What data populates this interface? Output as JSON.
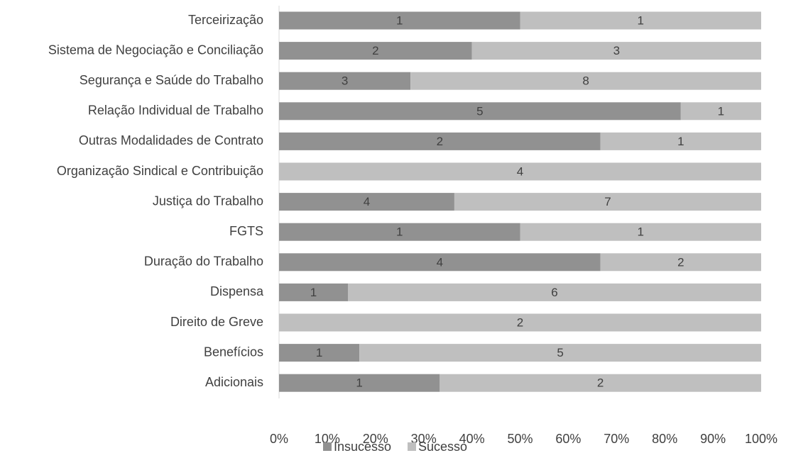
{
  "chart_data": {
    "type": "bar",
    "orientation": "horizontal",
    "stacking": "percent",
    "categories": [
      "Terceirização",
      "Sistema de Negociação e Conciliação",
      "Segurança e Saúde do Trabalho",
      "Relação Individual de Trabalho",
      "Outras Modalidades de Contrato",
      "Organização Sindical e Contribuição",
      "Justiça do Trabalho",
      "FGTS",
      "Duração do Trabalho",
      "Dispensa",
      "Direito de Greve",
      "Benefícios",
      "Adicionais"
    ],
    "series": [
      {
        "name": "Insucesso",
        "color": "#919191",
        "values": [
          1,
          2,
          3,
          5,
          2,
          0,
          4,
          1,
          4,
          1,
          0,
          1,
          1
        ]
      },
      {
        "name": "Sucesso",
        "color": "#bfbfbf",
        "values": [
          1,
          3,
          8,
          1,
          1,
          4,
          7,
          1,
          2,
          6,
          2,
          5,
          2
        ]
      }
    ],
    "xlim": [
      0,
      100
    ],
    "xticks": [
      {
        "value": 0,
        "label": "0%"
      },
      {
        "value": 10,
        "label": "10%"
      },
      {
        "value": 20,
        "label": "20%"
      },
      {
        "value": 30,
        "label": "30%"
      },
      {
        "value": 40,
        "label": "40%"
      },
      {
        "value": 50,
        "label": "50%"
      },
      {
        "value": 60,
        "label": "60%"
      },
      {
        "value": 70,
        "label": "70%"
      },
      {
        "value": 80,
        "label": "80%"
      },
      {
        "value": 90,
        "label": "90%"
      },
      {
        "value": 100,
        "label": "100%"
      }
    ],
    "legend": "bottom"
  }
}
